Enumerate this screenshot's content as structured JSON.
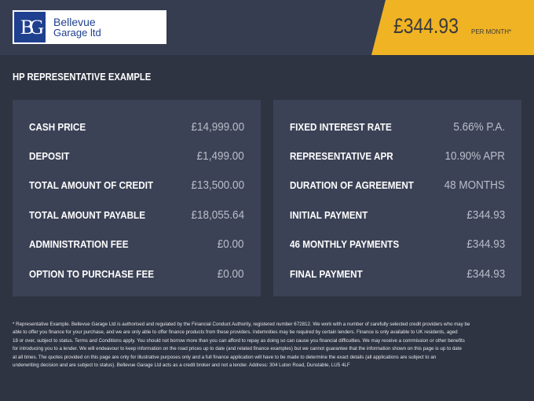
{
  "header": {
    "logo_mark": "BG",
    "logo_line1": "Bellevue",
    "logo_line2": "Garage ltd",
    "price": "£344.93",
    "per_month": "PER MONTH*",
    "accent": "#f0b323"
  },
  "title": "HP REPRESENTATIVE EXAMPLE",
  "left_panel": [
    {
      "label": "CASH PRICE",
      "value": "£14,999.00"
    },
    {
      "label": "DEPOSIT",
      "value": "£1,499.00"
    },
    {
      "label": "TOTAL AMOUNT OF CREDIT",
      "value": "£13,500.00"
    },
    {
      "label": "TOTAL AMOUNT PAYABLE",
      "value": "£18,055.64"
    },
    {
      "label": "ADMINISTRATION FEE",
      "value": "£0.00"
    },
    {
      "label": "OPTION TO PURCHASE FEE",
      "value": "£0.00"
    }
  ],
  "right_panel": [
    {
      "label": "FIXED INTEREST RATE",
      "value": "5.66% P.A."
    },
    {
      "label": "REPRESENTATIVE APR",
      "value": "10.90% APR"
    },
    {
      "label": "DURATION OF AGREEMENT",
      "value": "48 MONTHS"
    },
    {
      "label": "INITIAL PAYMENT",
      "value": "£344.93"
    },
    {
      "label": "46 MONTHLY PAYMENTS",
      "value": "£344.93"
    },
    {
      "label": "FINAL PAYMENT",
      "value": "£344.93"
    }
  ],
  "footer": [
    "* Representative Example. Bellevue Garage Ltd is authorised and regulated by the Financial Conduct Authority, registered number 672812. We work with a number of carefully selected credit providers who may be",
    "able to offer you finance for your purchase, and we are only able to offer finance products from these providers. Indemnities may be required by certain lenders. Finance is only available to UK residents, aged",
    "18 or over, subject to status. Terms and Conditions apply. You should not borrow more than you can afford to repay as doing so can cause you financial difficulties. We may receive a commission or other benefits",
    "for introducing you to a lender. We will endeavour to keep information on the road prices up to date (and related finance examples) but we cannot guarantee that the information shown on this page is up to date",
    "at all times. The quotes provided on this page are only for illustrative purposes only and a full finance application will have to be made to determine the exact details (all applications are subject to an",
    "underwriting decision and are subject to status). Bellevue Garage Ltd acts as a credit broker and not a lender. Address: 304 Luton Road, Dunstable, LU5 4LF"
  ]
}
